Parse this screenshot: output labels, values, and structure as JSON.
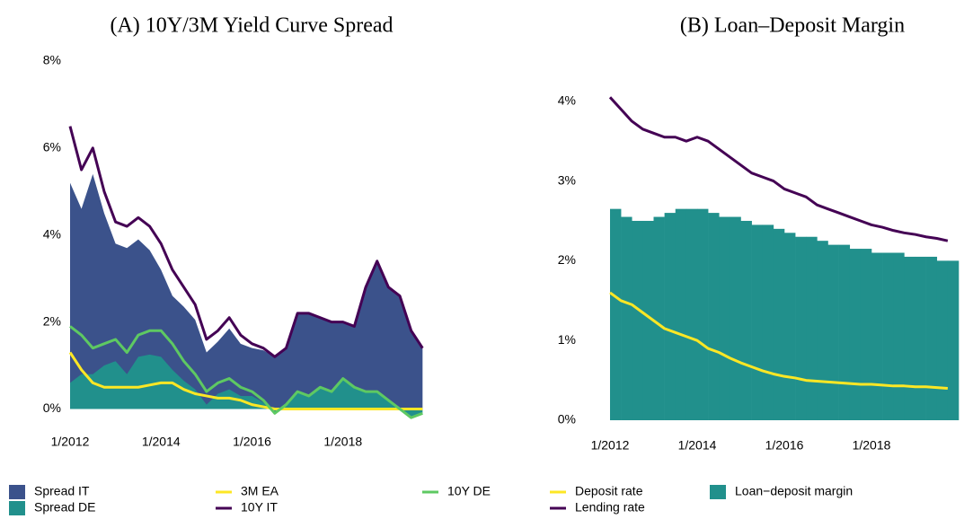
{
  "chart_data": [
    {
      "type": "area",
      "title": "(A) 10Y/3M Yield Curve Spread",
      "x": [
        "2012-01",
        "2012-04",
        "2012-07",
        "2012-10",
        "2013-01",
        "2013-04",
        "2013-07",
        "2013-10",
        "2014-01",
        "2014-04",
        "2014-07",
        "2014-10",
        "2015-01",
        "2015-04",
        "2015-07",
        "2015-10",
        "2016-01",
        "2016-04",
        "2016-07",
        "2016-10",
        "2017-01",
        "2017-04",
        "2017-07",
        "2017-10",
        "2018-01",
        "2018-04",
        "2018-07",
        "2018-10",
        "2019-01",
        "2019-04",
        "2019-07",
        "2019-10"
      ],
      "xlim": [
        "2012-01",
        "2020-01"
      ],
      "xticks": [
        {
          "value": "2012-01",
          "label": "1/2012"
        },
        {
          "value": "2014-01",
          "label": "1/2014"
        },
        {
          "value": "2016-01",
          "label": "1/2016"
        },
        {
          "value": "2018-01",
          "label": "1/2018"
        }
      ],
      "ylim": [
        -0.3,
        8
      ],
      "yticks": [
        {
          "value": 0,
          "label": "0%"
        },
        {
          "value": 2,
          "label": "2%"
        },
        {
          "value": 4,
          "label": "4%"
        },
        {
          "value": 6,
          "label": "6%"
        },
        {
          "value": 8,
          "label": "8%"
        }
      ],
      "series": [
        {
          "name": "Spread IT",
          "kind": "area",
          "color": "#3b528b",
          "values": [
            5.2,
            4.6,
            5.4,
            4.5,
            3.8,
            3.7,
            3.9,
            3.65,
            3.2,
            2.6,
            2.35,
            2.05,
            1.3,
            1.55,
            1.85,
            1.5,
            1.4,
            1.35,
            1.2,
            1.4,
            2.2,
            2.2,
            2.1,
            2.0,
            2.0,
            1.9,
            2.8,
            3.4,
            2.8,
            2.6,
            1.8,
            1.4
          ]
        },
        {
          "name": "Spread DE",
          "kind": "area",
          "color": "#21908c",
          "values": [
            0.6,
            0.8,
            0.8,
            1.0,
            1.1,
            0.8,
            1.2,
            1.25,
            1.2,
            0.9,
            0.65,
            0.45,
            0.1,
            0.35,
            0.45,
            0.3,
            0.3,
            0.15,
            -0.1,
            0.1,
            0.4,
            0.3,
            0.5,
            0.4,
            0.7,
            0.5,
            0.4,
            0.4,
            0.2,
            0.0,
            -0.2,
            -0.1
          ]
        },
        {
          "name": "3M EA",
          "kind": "line",
          "color": "#fde725",
          "values": [
            1.3,
            0.9,
            0.6,
            0.5,
            0.5,
            0.5,
            0.5,
            0.55,
            0.6,
            0.6,
            0.45,
            0.35,
            0.3,
            0.25,
            0.25,
            0.2,
            0.1,
            0.05,
            0.0,
            0.0,
            0.0,
            0.0,
            0.0,
            0.0,
            0.0,
            0.0,
            0.0,
            0.0,
            0.0,
            0.0,
            0.0,
            0.0
          ]
        },
        {
          "name": "10Y IT",
          "kind": "line",
          "color": "#440154",
          "values": [
            6.5,
            5.5,
            6.0,
            5.0,
            4.3,
            4.2,
            4.4,
            4.2,
            3.8,
            3.2,
            2.8,
            2.4,
            1.6,
            1.8,
            2.1,
            1.7,
            1.5,
            1.4,
            1.2,
            1.4,
            2.2,
            2.2,
            2.1,
            2.0,
            2.0,
            1.9,
            2.8,
            3.4,
            2.8,
            2.6,
            1.8,
            1.4
          ]
        },
        {
          "name": "10Y DE",
          "kind": "line",
          "color": "#5ec962",
          "values": [
            1.9,
            1.7,
            1.4,
            1.5,
            1.6,
            1.3,
            1.7,
            1.8,
            1.8,
            1.5,
            1.1,
            0.8,
            0.4,
            0.6,
            0.7,
            0.5,
            0.4,
            0.2,
            -0.1,
            0.1,
            0.4,
            0.3,
            0.5,
            0.4,
            0.7,
            0.5,
            0.4,
            0.4,
            0.2,
            0.0,
            -0.2,
            -0.1
          ]
        }
      ]
    },
    {
      "type": "bar",
      "title": "(B) Loan–Deposit Margin",
      "x": [
        "2012-01",
        "2012-04",
        "2012-07",
        "2012-10",
        "2013-01",
        "2013-04",
        "2013-07",
        "2013-10",
        "2014-01",
        "2014-04",
        "2014-07",
        "2014-10",
        "2015-01",
        "2015-04",
        "2015-07",
        "2015-10",
        "2016-01",
        "2016-04",
        "2016-07",
        "2016-10",
        "2017-01",
        "2017-04",
        "2017-07",
        "2017-10",
        "2018-01",
        "2018-04",
        "2018-07",
        "2018-10",
        "2019-01",
        "2019-04",
        "2019-07",
        "2019-10"
      ],
      "xlim": [
        "2012-01",
        "2020-01"
      ],
      "xticks": [
        {
          "value": "2012-01",
          "label": "1/2012"
        },
        {
          "value": "2014-01",
          "label": "1/2014"
        },
        {
          "value": "2016-01",
          "label": "1/2016"
        },
        {
          "value": "2018-01",
          "label": "1/2018"
        }
      ],
      "ylim": [
        0,
        4.2
      ],
      "yticks": [
        {
          "value": 0,
          "label": "0%"
        },
        {
          "value": 1,
          "label": "1%"
        },
        {
          "value": 2,
          "label": "2%"
        },
        {
          "value": 3,
          "label": "3%"
        },
        {
          "value": 4,
          "label": "4%"
        }
      ],
      "series": [
        {
          "name": "Loan−deposit margin",
          "kind": "bar",
          "color": "#21908c",
          "values": [
            2.65,
            2.55,
            2.5,
            2.5,
            2.55,
            2.6,
            2.65,
            2.65,
            2.65,
            2.6,
            2.55,
            2.55,
            2.5,
            2.45,
            2.45,
            2.4,
            2.35,
            2.3,
            2.3,
            2.25,
            2.2,
            2.2,
            2.15,
            2.15,
            2.1,
            2.1,
            2.1,
            2.05,
            2.05,
            2.05,
            2.0,
            2.0
          ]
        },
        {
          "name": "Deposit rate",
          "kind": "line",
          "color": "#fde725",
          "values": [
            1.6,
            1.5,
            1.45,
            1.35,
            1.25,
            1.15,
            1.1,
            1.05,
            1.0,
            0.9,
            0.85,
            0.78,
            0.72,
            0.67,
            0.62,
            0.58,
            0.55,
            0.53,
            0.5,
            0.49,
            0.48,
            0.47,
            0.46,
            0.45,
            0.45,
            0.44,
            0.43,
            0.43,
            0.42,
            0.42,
            0.41,
            0.4
          ]
        },
        {
          "name": "Lending rate",
          "kind": "line",
          "color": "#440154",
          "values": [
            4.05,
            3.9,
            3.75,
            3.65,
            3.6,
            3.55,
            3.55,
            3.5,
            3.55,
            3.5,
            3.4,
            3.3,
            3.2,
            3.1,
            3.05,
            3.0,
            2.9,
            2.85,
            2.8,
            2.7,
            2.65,
            2.6,
            2.55,
            2.5,
            2.45,
            2.42,
            2.38,
            2.35,
            2.33,
            2.3,
            2.28,
            2.25
          ]
        }
      ]
    }
  ]
}
